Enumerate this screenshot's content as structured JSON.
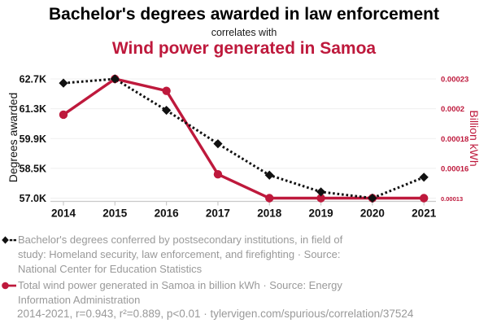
{
  "header": {
    "title": "Bachelor's degrees awarded in law enforcement",
    "connector": "correlates with",
    "subtitle": "Wind power generated in Samoa"
  },
  "colors": {
    "accent_red": "#be193c",
    "series_black": "#111111",
    "legend_gray": "#999999",
    "gridline": "#efefef",
    "axis_line": "#c9c9c9"
  },
  "chart_data": {
    "type": "line",
    "x": [
      2014,
      2015,
      2016,
      2017,
      2018,
      2019,
      2020,
      2021
    ],
    "series": [
      {
        "name": "bachelors-degrees",
        "axis": "left",
        "color": "#111111",
        "style": "dashed",
        "marker": "diamond",
        "values": [
          62500,
          62700,
          61200,
          59600,
          58100,
          57300,
          57000,
          58000
        ]
      },
      {
        "name": "wind-power-samoa",
        "axis": "right",
        "color": "#be193c",
        "style": "solid",
        "marker": "circle",
        "values": [
          0.0002,
          0.00023,
          0.00022,
          0.00015,
          0.00013,
          0.00013,
          0.00013,
          0.00013
        ]
      }
    ],
    "left_axis": {
      "label": "Degrees awarded",
      "min": 57000,
      "max": 62700,
      "tick_labels": [
        "57.0K",
        "58.5K",
        "59.9K",
        "61.3K",
        "62.7K"
      ]
    },
    "right_axis": {
      "label": "Billion kWh",
      "min": 0.00013,
      "max": 0.00023,
      "tick_labels": [
        "0.00013",
        "0.00016",
        "0.00018",
        "0.0002",
        "0.00023"
      ]
    },
    "grid": "horizontal",
    "legend_position": "bottom"
  },
  "legend": {
    "series1": "Bachelor's degrees conferred by postsecondary institutions, in field of study: Homeland security, law enforcement, and firefighting · Source: National Center for Education Statistics",
    "series2": "Total wind power generated in Samoa in billion kWh · Source: Energy Information Administration"
  },
  "footer": {
    "stats": "2014-2021, r=0.943, r²=0.889, p<0.01 · tylervigen.com/spurious/correlation/37524"
  }
}
